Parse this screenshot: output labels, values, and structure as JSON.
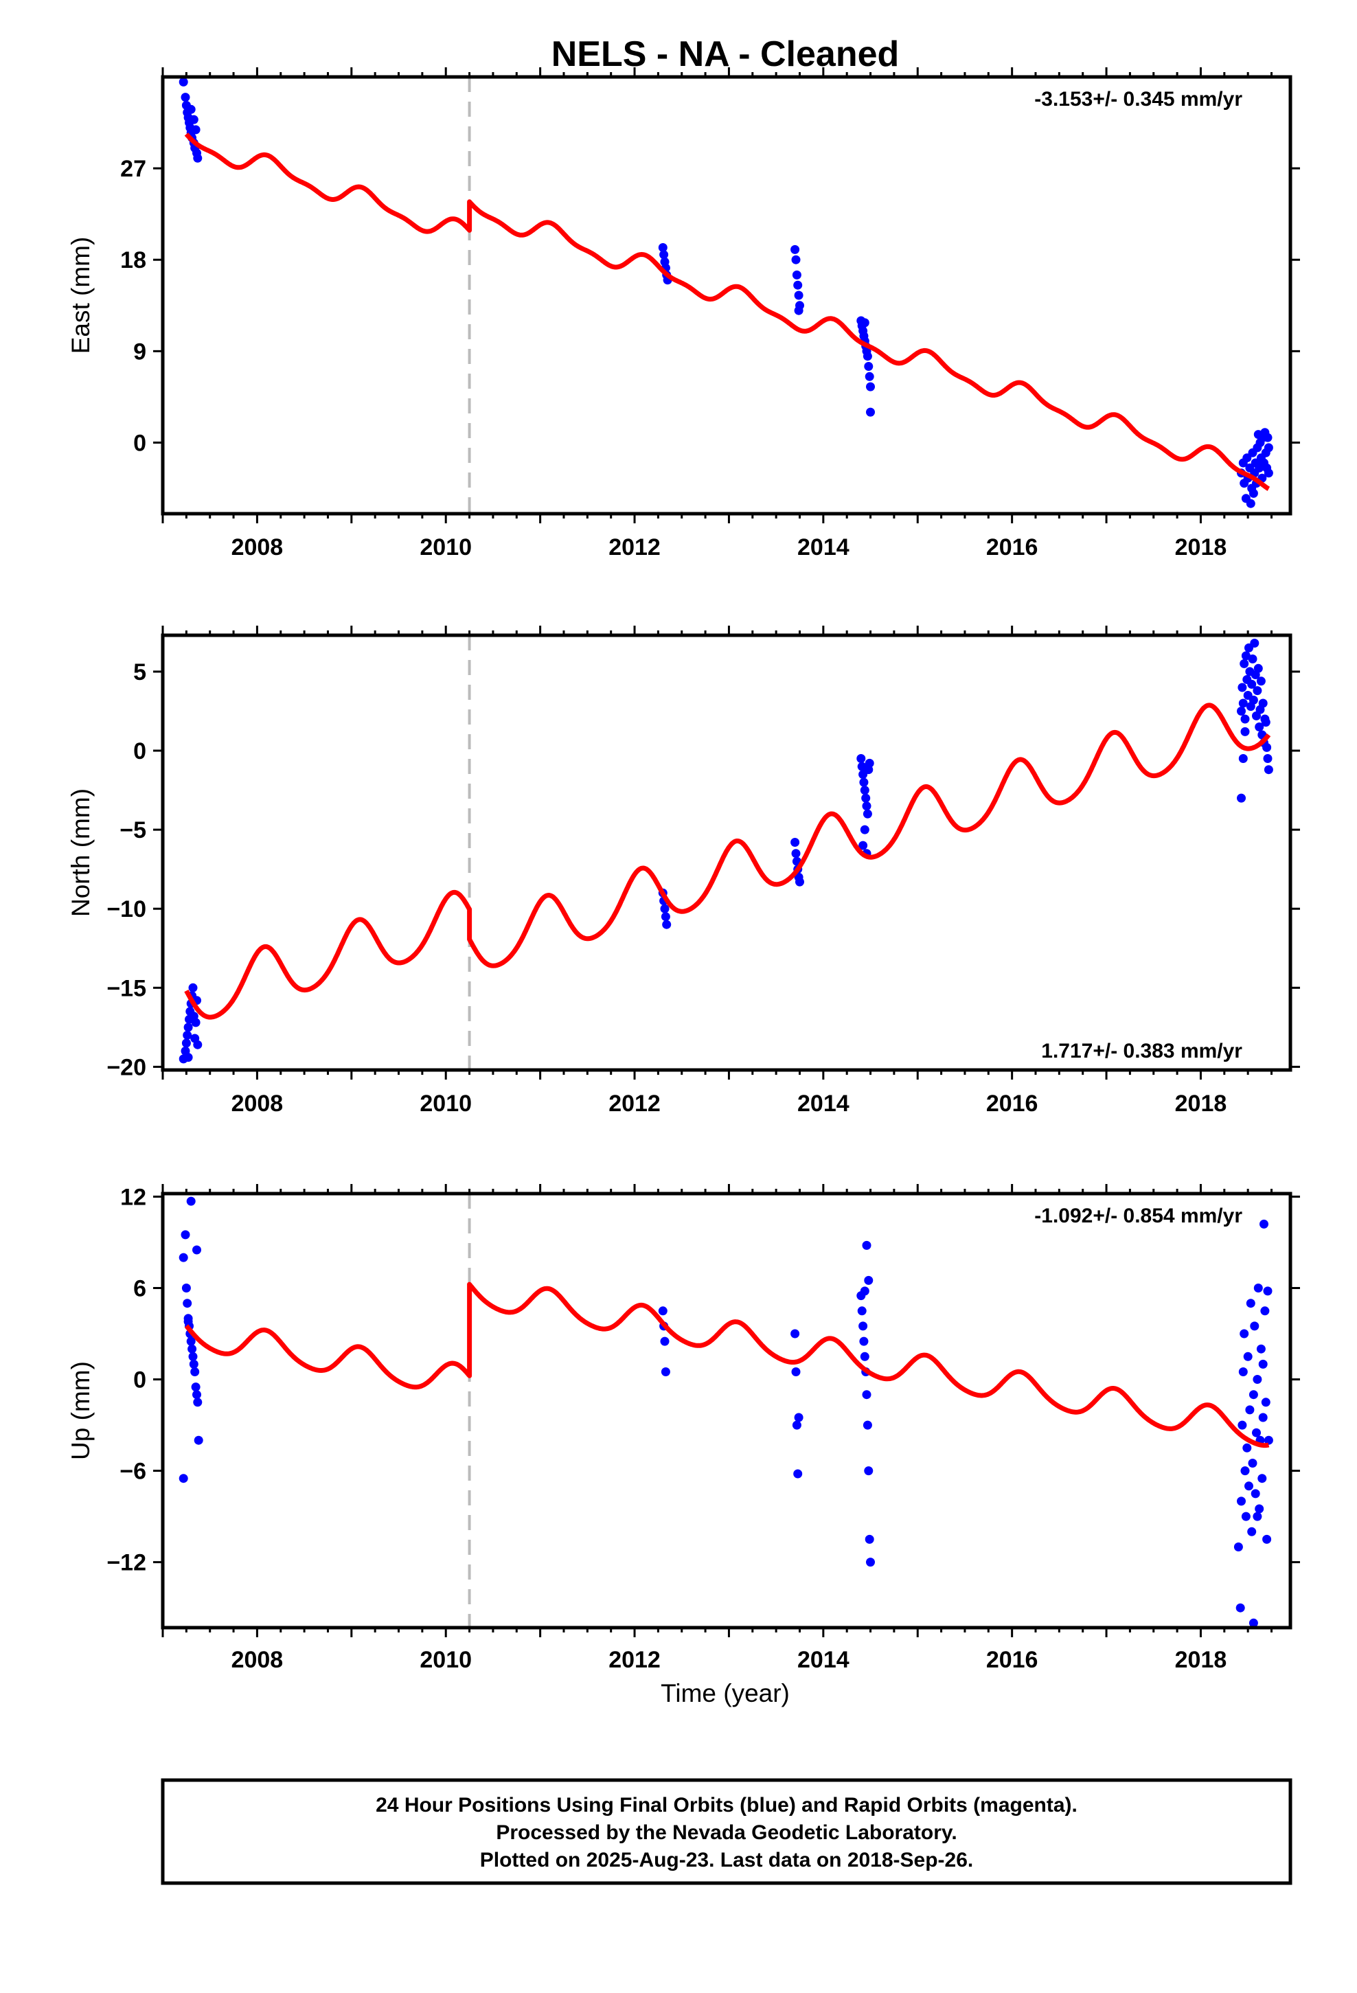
{
  "title": "NELS  - NA - Cleaned",
  "xlabel": "Time (year)",
  "footer": [
    "24 Hour Positions Using Final Orbits (blue) and Rapid Orbits (magenta).",
    "Processed by the Nevada Geodetic Laboratory.",
    "Plotted on 2025-Aug-23. Last data on 2018-Sep-26."
  ],
  "colors": {
    "data": "#0000ff",
    "model": "#ff0000",
    "event_line": "#bbbbbb",
    "frame": "#000000"
  },
  "chart_data": [
    {
      "type": "scatter",
      "panel": "east",
      "ylabel": "East (mm)",
      "rate_text": "-3.153+/- 0.345 mm/yr",
      "rate_position": "top-right",
      "xlim": [
        2007.0,
        2018.95
      ],
      "ylim": [
        -7,
        36
      ],
      "xticks": [
        2008,
        2010,
        2012,
        2014,
        2016,
        2018
      ],
      "yticks": [
        0,
        9,
        18,
        27
      ],
      "event_line_x": 2010.25,
      "model": {
        "name": "",
        "rate": -3.153,
        "offset": 27.4,
        "ref_year": 2008.0,
        "annual_sin": 0.8,
        "annual_cos": 0.5,
        "semi_sin": 0.3,
        "semi_cos": 0.2,
        "step_year": 2010.25,
        "step": 2.8,
        "x_start": 2007.25,
        "x_end": 2018.72
      },
      "points": [
        [
          2007.22,
          35.5
        ],
        [
          2007.24,
          34.0
        ],
        [
          2007.25,
          33.2
        ],
        [
          2007.26,
          32.5
        ],
        [
          2007.27,
          32.0
        ],
        [
          2007.28,
          31.5
        ],
        [
          2007.29,
          31.0
        ],
        [
          2007.3,
          30.5
        ],
        [
          2007.31,
          30.0
        ],
        [
          2007.33,
          29.5
        ],
        [
          2007.34,
          29.0
        ],
        [
          2007.36,
          28.5
        ],
        [
          2007.37,
          28.0
        ],
        [
          2007.3,
          32.8
        ],
        [
          2007.33,
          31.8
        ],
        [
          2007.35,
          30.8
        ],
        [
          2012.3,
          19.2
        ],
        [
          2012.31,
          18.5
        ],
        [
          2012.32,
          17.8
        ],
        [
          2012.33,
          17.2
        ],
        [
          2012.34,
          16.5
        ],
        [
          2012.35,
          16.0
        ],
        [
          2013.7,
          19.0
        ],
        [
          2013.71,
          18.0
        ],
        [
          2013.72,
          16.5
        ],
        [
          2013.73,
          15.5
        ],
        [
          2013.74,
          14.5
        ],
        [
          2013.75,
          13.5
        ],
        [
          2013.74,
          13.0
        ],
        [
          2014.4,
          12.0
        ],
        [
          2014.41,
          11.5
        ],
        [
          2014.42,
          11.0
        ],
        [
          2014.43,
          10.5
        ],
        [
          2014.44,
          10.0
        ],
        [
          2014.45,
          9.5
        ],
        [
          2014.46,
          9.0
        ],
        [
          2014.47,
          8.5
        ],
        [
          2014.48,
          7.5
        ],
        [
          2014.49,
          6.5
        ],
        [
          2014.5,
          5.5
        ],
        [
          2014.5,
          3.0
        ],
        [
          2014.44,
          11.8
        ],
        [
          2018.43,
          -3.0
        ],
        [
          2018.45,
          -2.0
        ],
        [
          2018.46,
          -4.0
        ],
        [
          2018.48,
          -5.5
        ],
        [
          2018.49,
          -1.5
        ],
        [
          2018.5,
          -3.5
        ],
        [
          2018.52,
          -2.5
        ],
        [
          2018.53,
          -6.0
        ],
        [
          2018.54,
          -4.5
        ],
        [
          2018.55,
          -1.0
        ],
        [
          2018.57,
          -3.0
        ],
        [
          2018.58,
          -2.0
        ],
        [
          2018.59,
          -4.0
        ],
        [
          2018.6,
          -0.5
        ],
        [
          2018.62,
          -2.5
        ],
        [
          2018.63,
          0.0
        ],
        [
          2018.64,
          -1.5
        ],
        [
          2018.65,
          -3.5
        ],
        [
          2018.66,
          0.5
        ],
        [
          2018.67,
          -2.0
        ],
        [
          2018.68,
          1.0
        ],
        [
          2018.69,
          -1.0
        ],
        [
          2018.7,
          -2.5
        ],
        [
          2018.71,
          0.5
        ],
        [
          2018.72,
          -0.5
        ],
        [
          2018.72,
          -3.0
        ],
        [
          2018.56,
          -5.0
        ],
        [
          2018.61,
          0.8
        ]
      ]
    },
    {
      "type": "scatter",
      "panel": "north",
      "ylabel": "North (mm)",
      "rate_text": "1.717+/- 0.383 mm/yr",
      "rate_position": "bottom-right",
      "xlim": [
        2007.0,
        2018.95
      ],
      "ylim": [
        -20.2,
        7.3
      ],
      "xticks": [
        2008,
        2010,
        2012,
        2014,
        2016,
        2018
      ],
      "yticks": [
        -20,
        -15,
        -10,
        -5,
        0,
        5
      ],
      "event_line_x": 2010.25,
      "model": {
        "name": "",
        "rate": 1.717,
        "offset": -14.5,
        "ref_year": 2008.0,
        "annual_sin": 0.7,
        "annual_cos": 1.6,
        "semi_sin": 0.2,
        "semi_cos": 0.1,
        "step_year": 2010.25,
        "step": -1.9,
        "x_start": 2007.25,
        "x_end": 2018.72
      },
      "points": [
        [
          2007.22,
          -19.5
        ],
        [
          2007.24,
          -19.0
        ],
        [
          2007.25,
          -18.5
        ],
        [
          2007.26,
          -18.0
        ],
        [
          2007.27,
          -17.5
        ],
        [
          2007.28,
          -17.0
        ],
        [
          2007.29,
          -16.5
        ],
        [
          2007.3,
          -16.0
        ],
        [
          2007.31,
          -15.5
        ],
        [
          2007.32,
          -15.0
        ],
        [
          2007.33,
          -16.8
        ],
        [
          2007.34,
          -18.2
        ],
        [
          2007.35,
          -17.2
        ],
        [
          2007.36,
          -15.8
        ],
        [
          2007.37,
          -18.6
        ],
        [
          2007.27,
          -19.4
        ],
        [
          2012.3,
          -9.0
        ],
        [
          2012.31,
          -9.5
        ],
        [
          2012.32,
          -10.0
        ],
        [
          2012.33,
          -10.5
        ],
        [
          2012.34,
          -11.0
        ],
        [
          2013.7,
          -5.8
        ],
        [
          2013.71,
          -6.5
        ],
        [
          2013.72,
          -7.0
        ],
        [
          2013.73,
          -7.5
        ],
        [
          2013.74,
          -8.0
        ],
        [
          2013.75,
          -8.3
        ],
        [
          2014.4,
          -0.5
        ],
        [
          2014.41,
          -1.0
        ],
        [
          2014.42,
          -1.5
        ],
        [
          2014.43,
          -2.0
        ],
        [
          2014.44,
          -2.5
        ],
        [
          2014.45,
          -3.0
        ],
        [
          2014.46,
          -3.5
        ],
        [
          2014.47,
          -4.0
        ],
        [
          2014.48,
          -1.2
        ],
        [
          2014.49,
          -0.8
        ],
        [
          2014.42,
          -6.0
        ],
        [
          2014.46,
          -6.5
        ],
        [
          2014.44,
          -5.0
        ],
        [
          2018.43,
          2.5
        ],
        [
          2018.44,
          4.0
        ],
        [
          2018.45,
          3.0
        ],
        [
          2018.46,
          5.5
        ],
        [
          2018.47,
          2.0
        ],
        [
          2018.48,
          6.0
        ],
        [
          2018.49,
          4.5
        ],
        [
          2018.5,
          3.5
        ],
        [
          2018.51,
          6.5
        ],
        [
          2018.52,
          5.0
        ],
        [
          2018.53,
          2.8
        ],
        [
          2018.54,
          4.2
        ],
        [
          2018.55,
          5.8
        ],
        [
          2018.56,
          3.2
        ],
        [
          2018.57,
          6.8
        ],
        [
          2018.58,
          4.8
        ],
        [
          2018.59,
          2.2
        ],
        [
          2018.6,
          3.8
        ],
        [
          2018.61,
          5.2
        ],
        [
          2018.62,
          1.5
        ],
        [
          2018.63,
          2.6
        ],
        [
          2018.64,
          4.4
        ],
        [
          2018.65,
          1.0
        ],
        [
          2018.66,
          3.0
        ],
        [
          2018.67,
          0.5
        ],
        [
          2018.68,
          2.0
        ],
        [
          2018.69,
          1.8
        ],
        [
          2018.7,
          0.2
        ],
        [
          2018.71,
          -0.5
        ],
        [
          2018.72,
          -1.2
        ],
        [
          2018.43,
          -3.0
        ],
        [
          2018.45,
          -0.5
        ],
        [
          2018.47,
          1.2
        ]
      ]
    },
    {
      "type": "scatter",
      "panel": "up",
      "ylabel": "Up (mm)",
      "rate_text": "-1.092+/- 0.854 mm/yr",
      "rate_position": "top-right",
      "xlim": [
        2007.0,
        2018.95
      ],
      "ylim": [
        -16.3,
        12.2
      ],
      "xticks": [
        2008,
        2010,
        2012,
        2014,
        2016,
        2018
      ],
      "yticks": [
        -12,
        -6,
        0,
        6,
        12
      ],
      "event_line_x": 2010.25,
      "model": {
        "name": "",
        "rate": -1.092,
        "offset": 2.2,
        "ref_year": 2008.0,
        "annual_sin": 0.6,
        "annual_cos": 0.8,
        "semi_sin": 0.1,
        "semi_cos": 0.1,
        "step_year": 2010.25,
        "step": 6.0,
        "x_start": 2007.25,
        "x_end": 2018.72
      },
      "points": [
        [
          2007.22,
          8.0
        ],
        [
          2007.24,
          9.5
        ],
        [
          2007.25,
          6.0
        ],
        [
          2007.26,
          5.0
        ],
        [
          2007.27,
          4.0
        ],
        [
          2007.28,
          3.5
        ],
        [
          2007.29,
          3.0
        ],
        [
          2007.3,
          2.5
        ],
        [
          2007.31,
          2.0
        ],
        [
          2007.32,
          1.5
        ],
        [
          2007.33,
          1.0
        ],
        [
          2007.34,
          0.5
        ],
        [
          2007.35,
          -0.5
        ],
        [
          2007.36,
          -1.0
        ],
        [
          2007.37,
          -1.5
        ],
        [
          2007.38,
          -4.0
        ],
        [
          2007.3,
          11.7
        ],
        [
          2007.36,
          8.5
        ],
        [
          2007.22,
          -6.5
        ],
        [
          2007.27,
          3.8
        ],
        [
          2012.3,
          4.5
        ],
        [
          2012.31,
          3.5
        ],
        [
          2012.32,
          2.5
        ],
        [
          2012.33,
          0.5
        ],
        [
          2013.7,
          3.0
        ],
        [
          2013.71,
          0.5
        ],
        [
          2013.72,
          -3.0
        ],
        [
          2013.73,
          -6.2
        ],
        [
          2013.74,
          -2.5
        ],
        [
          2014.4,
          5.5
        ],
        [
          2014.41,
          4.5
        ],
        [
          2014.42,
          3.5
        ],
        [
          2014.43,
          2.5
        ],
        [
          2014.44,
          1.5
        ],
        [
          2014.45,
          0.5
        ],
        [
          2014.46,
          -1.0
        ],
        [
          2014.47,
          -3.0
        ],
        [
          2014.48,
          -6.0
        ],
        [
          2014.49,
          -10.5
        ],
        [
          2014.5,
          -12.0
        ],
        [
          2014.46,
          8.8
        ],
        [
          2014.44,
          5.8
        ],
        [
          2014.48,
          6.5
        ],
        [
          2018.4,
          -11.0
        ],
        [
          2018.42,
          -15.0
        ],
        [
          2018.43,
          -8.0
        ],
        [
          2018.44,
          -3.0
        ],
        [
          2018.45,
          0.5
        ],
        [
          2018.46,
          3.0
        ],
        [
          2018.47,
          -6.0
        ],
        [
          2018.48,
          -9.0
        ],
        [
          2018.49,
          -4.5
        ],
        [
          2018.5,
          1.5
        ],
        [
          2018.51,
          -7.0
        ],
        [
          2018.52,
          -2.0
        ],
        [
          2018.53,
          5.0
        ],
        [
          2018.54,
          -10.0
        ],
        [
          2018.55,
          -5.5
        ],
        [
          2018.56,
          -1.0
        ],
        [
          2018.57,
          3.5
        ],
        [
          2018.58,
          -7.5
        ],
        [
          2018.59,
          -3.5
        ],
        [
          2018.6,
          0.0
        ],
        [
          2018.61,
          6.0
        ],
        [
          2018.62,
          -8.5
        ],
        [
          2018.63,
          -4.0
        ],
        [
          2018.64,
          2.0
        ],
        [
          2018.65,
          -6.5
        ],
        [
          2018.66,
          -2.5
        ],
        [
          2018.67,
          10.2
        ],
        [
          2018.68,
          4.5
        ],
        [
          2018.69,
          -1.5
        ],
        [
          2018.7,
          -10.5
        ],
        [
          2018.71,
          5.8
        ],
        [
          2018.72,
          -4.0
        ],
        [
          2018.56,
          -16.0
        ],
        [
          2018.6,
          -9.0
        ],
        [
          2018.66,
          1.0
        ]
      ]
    }
  ]
}
